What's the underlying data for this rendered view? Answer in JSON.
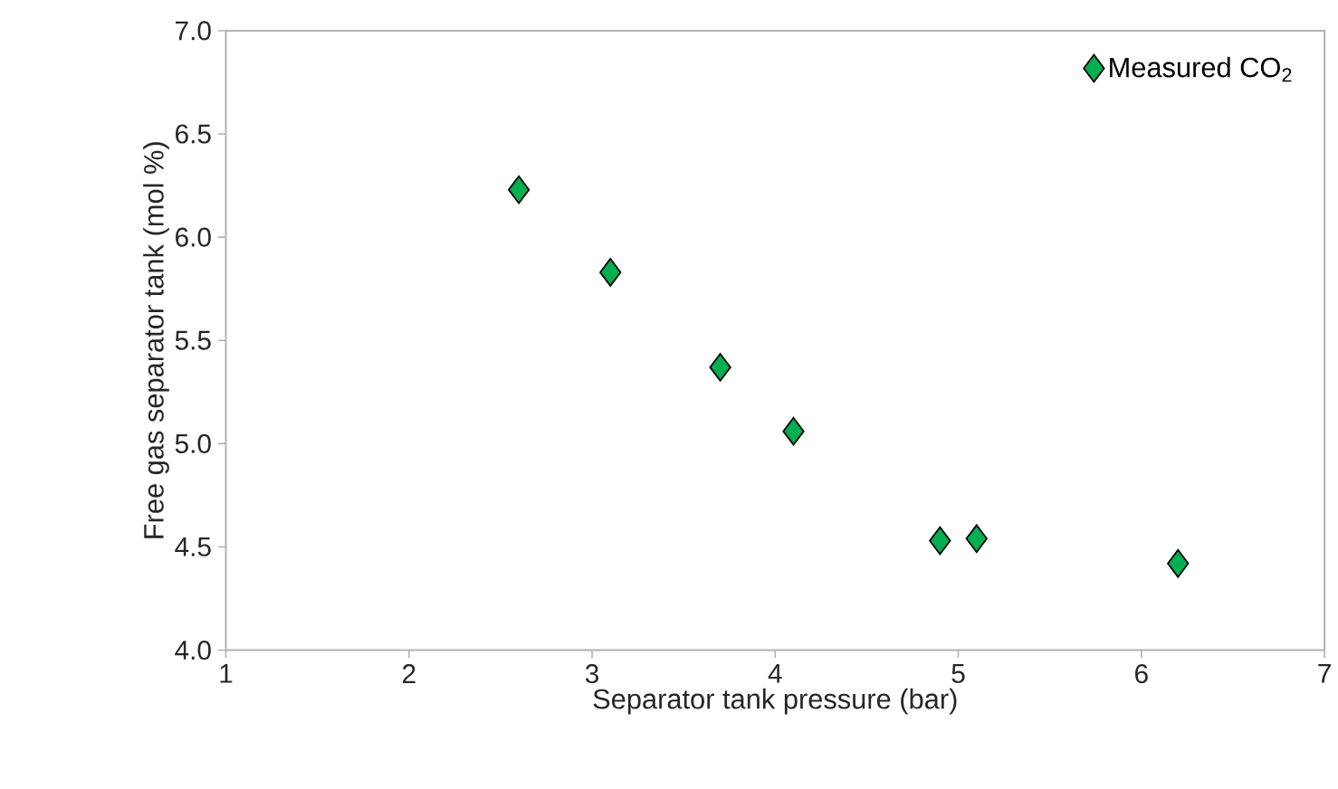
{
  "chart_data": {
    "type": "scatter",
    "xlabel": "Separator tank pressure (bar)",
    "ylabel": "Free gas separator tank  (mol %)",
    "x": [
      2.6,
      3.1,
      3.7,
      4.1,
      4.9,
      5.1,
      6.2
    ],
    "series": [
      {
        "name": "Measured CO$_{2}$",
        "color": "#00b050",
        "values": [
          6.23,
          5.83,
          5.37,
          5.06,
          4.53,
          4.54,
          4.42
        ]
      }
    ],
    "xlim": [
      1,
      7
    ],
    "ylim": [
      4,
      7
    ],
    "xticks": [
      1,
      2,
      3,
      4,
      5,
      6,
      7
    ],
    "yticks": [
      {
        "value": 4,
        "label": "4.0"
      },
      {
        "value": 4.5,
        "label": "4.5"
      },
      {
        "value": 5,
        "label": "5.0"
      },
      {
        "value": 5.5,
        "label": "5.5"
      },
      {
        "value": 6,
        "label": "6.0"
      },
      {
        "value": 6.5,
        "label": "6.5"
      },
      {
        "value": 7,
        "label": "7.0"
      }
    ],
    "grid": false,
    "legend": "top right",
    "marker": "diamond"
  }
}
